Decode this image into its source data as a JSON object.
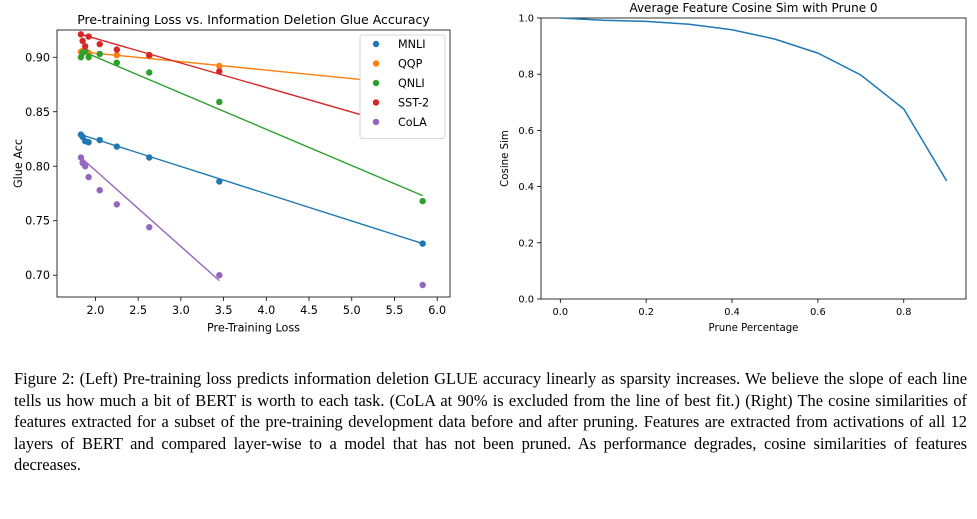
{
  "chart_data": [
    {
      "type": "scatter",
      "title": "Pre-training Loss vs. Information Deletion Glue Accuracy",
      "xlabel": "Pre-Training Loss",
      "ylabel": "Glue Acc",
      "xlim": [
        1.55,
        6.15
      ],
      "ylim": [
        0.68,
        0.925
      ],
      "xticks": [
        "2.0",
        "2.5",
        "3.0",
        "3.5",
        "4.0",
        "4.5",
        "5.0",
        "5.5",
        "6.0"
      ],
      "yticks": [
        "0.70",
        "0.75",
        "0.80",
        "0.85",
        "0.90"
      ],
      "legend_position": "upper-right",
      "series": [
        {
          "name": "MNLI",
          "color": "#1f77b4",
          "x": [
            1.83,
            1.85,
            1.88,
            1.92,
            2.05,
            2.25,
            2.63,
            3.45,
            5.83
          ],
          "y": [
            0.829,
            0.827,
            0.823,
            0.822,
            0.824,
            0.818,
            0.808,
            0.786,
            0.729
          ],
          "fit": [
            [
              1.83,
              0.829
            ],
            [
              5.83,
              0.729
            ]
          ]
        },
        {
          "name": "QQP",
          "color": "#ff7f0e",
          "x": [
            1.83,
            1.85,
            1.88,
            1.92,
            2.05,
            2.25,
            2.63,
            3.45,
            5.83
          ],
          "y": [
            0.905,
            0.906,
            0.905,
            0.904,
            0.903,
            0.902,
            0.901,
            0.892,
            0.876
          ],
          "fit": [
            [
              1.83,
              0.905
            ],
            [
              5.83,
              0.874
            ]
          ]
        },
        {
          "name": "QNLI",
          "color": "#2ca02c",
          "x": [
            1.83,
            1.85,
            1.88,
            1.92,
            2.05,
            2.25,
            2.63,
            3.45,
            5.83
          ],
          "y": [
            0.9,
            0.904,
            0.906,
            0.9,
            0.903,
            0.895,
            0.886,
            0.859,
            0.768
          ],
          "fit": [
            [
              1.83,
              0.906
            ],
            [
              5.83,
              0.773
            ]
          ]
        },
        {
          "name": "SST-2",
          "color": "#d62728",
          "x": [
            1.83,
            1.85,
            1.88,
            1.92,
            2.05,
            2.25,
            2.63,
            3.45,
            5.83
          ],
          "y": [
            0.921,
            0.915,
            0.91,
            0.919,
            0.912,
            0.907,
            0.902,
            0.887,
            0.831
          ],
          "fit": [
            [
              1.83,
              0.921
            ],
            [
              5.83,
              0.831
            ]
          ]
        },
        {
          "name": "CoLA",
          "color": "#9467bd",
          "x": [
            1.83,
            1.85,
            1.88,
            1.92,
            2.05,
            2.25,
            2.63,
            3.45,
            5.83
          ],
          "y": [
            0.808,
            0.803,
            0.8,
            0.79,
            0.778,
            0.765,
            0.744,
            0.7,
            0.691
          ],
          "fit": [
            [
              1.83,
              0.808
            ],
            [
              3.45,
              0.695
            ]
          ]
        }
      ]
    },
    {
      "type": "line",
      "title": "Average Feature Cosine Sim with Prune 0",
      "xlabel": "Prune Percentage",
      "ylabel": "Cosine Sim",
      "xlim": [
        -0.045,
        0.945
      ],
      "ylim": [
        0.0,
        1.0
      ],
      "xticks": [
        "0.0",
        "0.2",
        "0.4",
        "0.6",
        "0.8"
      ],
      "yticks": [
        "0.0",
        "0.2",
        "0.4",
        "0.6",
        "0.8",
        "1.0"
      ],
      "series": [
        {
          "color": "#1f77b4",
          "x": [
            0.0,
            0.1,
            0.2,
            0.3,
            0.4,
            0.5,
            0.6,
            0.7,
            0.8,
            0.9
          ],
          "y": [
            1.0,
            0.992,
            0.988,
            0.978,
            0.958,
            0.925,
            0.875,
            0.797,
            0.676,
            0.42
          ]
        }
      ]
    }
  ],
  "caption": "Figure 2: (Left) Pre-training loss predicts information deletion GLUE accuracy linearly as sparsity increases. We believe the slope of each line tells us how much a bit of BERT is worth to each task. (CoLA at 90% is excluded from the line of best fit.) (Right) The cosine similarities of features extracted for a subset of the pre-training development data before and after pruning. Features are extracted from activations of all 12 layers of BERT and compared layer-wise to a model that has not been pruned. As performance degrades, cosine similarities of features decreases."
}
